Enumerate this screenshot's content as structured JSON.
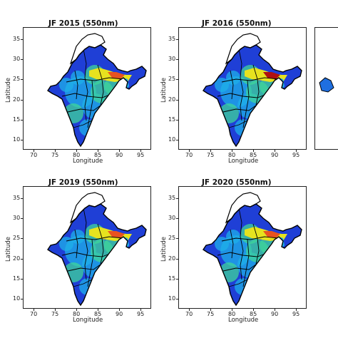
{
  "panels": [
    {
      "title": "JF 2015 (550nm)"
    },
    {
      "title": "JF 2016 (550nm)"
    },
    {
      "title": "JF 2019 (550nm)"
    },
    {
      "title": "JF 2020 (550nm)"
    }
  ],
  "axes": {
    "xlabel": "Longitude",
    "ylabel": "Latitude",
    "xticks": [
      "70",
      "75",
      "80",
      "85",
      "90",
      "95"
    ],
    "yticks": [
      "35",
      "30",
      "25",
      "20",
      "15",
      "10"
    ]
  },
  "colors": {
    "low": "#1f3fd6",
    "mid_low": "#1fb0e8",
    "mid": "#3fd69a",
    "mid_high": "#e6e21f",
    "high": "#e8531f",
    "max": "#b01010",
    "region_outside": "#ffffff",
    "boundary": "#000000"
  }
}
